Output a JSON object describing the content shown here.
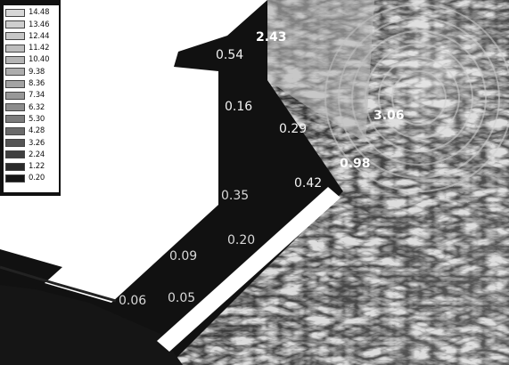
{
  "legend": {
    "values": [
      "14.48",
      "13.46",
      "12.44",
      "11.42",
      "10.40",
      "9.38",
      "8.36",
      "7.34",
      "6.32",
      "5.30",
      "4.28",
      "3.26",
      "2.24",
      "1.22",
      "0.20"
    ],
    "colors": [
      "#d7d7d7",
      "#cfcfcf",
      "#c7c7c7",
      "#bdbdbd",
      "#b5b5b5",
      "#adadad",
      "#a3a3a3",
      "#989898",
      "#8c8c8c",
      "#7c7c7c",
      "#6a6a6a",
      "#555555",
      "#3f3f3f",
      "#2a2a2a",
      "#151515"
    ]
  },
  "annotations": {
    "a1": "2.43",
    "a2": "0.54",
    "a3": "0.16",
    "a4": "0.29",
    "a5": "3.06",
    "a6": "0.98",
    "a7": "0.42",
    "a8": "0.35",
    "a9": "0.20",
    "a10": "0.09",
    "a11": "0.06",
    "a12": "0.05"
  }
}
